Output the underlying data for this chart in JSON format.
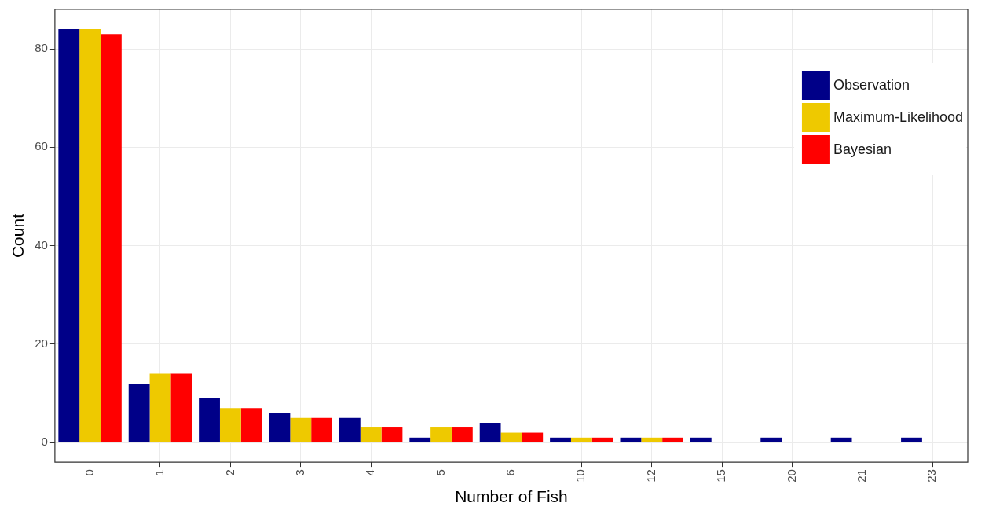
{
  "chart_data": {
    "type": "bar",
    "xlabel": "Number of Fish",
    "ylabel": "Count",
    "categories": [
      "0",
      "1",
      "2",
      "3",
      "4",
      "5",
      "6",
      "10",
      "12",
      "15",
      "20",
      "21",
      "23"
    ],
    "series": [
      {
        "name": "Observation",
        "color": "#000088",
        "values": [
          84,
          12,
          9,
          6,
          5,
          1,
          4,
          1,
          1,
          1,
          1,
          1,
          1
        ]
      },
      {
        "name": "Maximum-Likelihood",
        "color": "#eec900",
        "values": [
          84,
          14,
          7,
          5,
          3.2,
          3.2,
          2,
          1,
          1,
          null,
          null,
          null,
          null
        ]
      },
      {
        "name": "Bayesian",
        "color": "#ff0000",
        "values": [
          83,
          14,
          7,
          5,
          3.2,
          3.2,
          2,
          1,
          1,
          null,
          null,
          null,
          null
        ]
      }
    ],
    "ylim": [
      -4,
      88
    ],
    "yticks": [
      0,
      20,
      40,
      60,
      80
    ],
    "grid": true,
    "legend": "top right"
  }
}
